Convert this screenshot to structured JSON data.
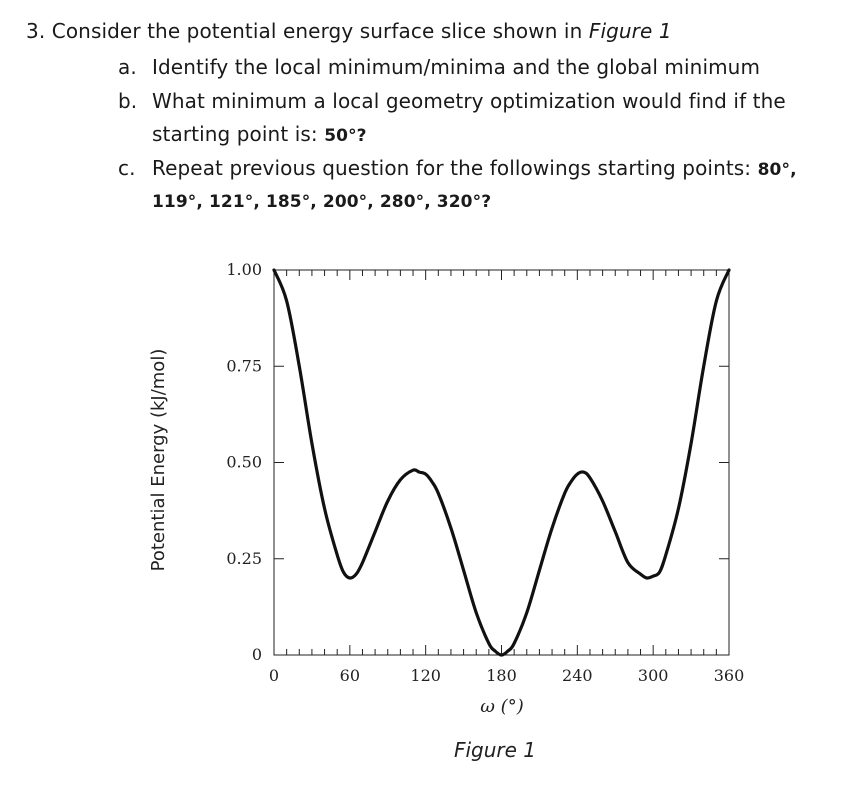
{
  "question": {
    "number": "3.",
    "text_prefix": "Consider the potential energy surface slice shown in",
    "figure_ref": "Figure 1",
    "a": {
      "marker": "a.",
      "text": "Identify the local minimum/minima and the global minimum"
    },
    "b": {
      "marker": "b.",
      "line1": "What minimum a local geometry optimization would find if the",
      "line2_prefix": "starting point is:",
      "line2_value": "50°?"
    },
    "c": {
      "marker": "c.",
      "line1_prefix": "Repeat previous question for the followings starting points:",
      "line1_value": "80°,",
      "line2_value": "119°, 121°, 185°, 200°, 280°, 320°?"
    }
  },
  "chart_data": {
    "type": "line",
    "title": "",
    "caption": "Figure 1",
    "xlabel": "ω (°)",
    "ylabel": "Potential Energy (kJ/mol)",
    "xlim": [
      0,
      360
    ],
    "ylim": [
      0,
      1.0
    ],
    "x_ticks": [
      "0",
      "60",
      "120",
      "180",
      "240",
      "300",
      "360"
    ],
    "y_ticks": [
      "0",
      "0.25",
      "0.50",
      "0.75",
      "1.00"
    ],
    "x_tick_values": [
      0,
      60,
      120,
      180,
      240,
      300,
      360
    ],
    "y_tick_values": [
      0,
      0.25,
      0.5,
      0.75,
      1.0
    ],
    "series": [
      {
        "x": [
          0,
          10,
          20,
          30,
          40,
          50,
          55,
          60,
          65,
          70,
          80,
          90,
          100,
          110,
          115,
          120,
          125,
          130,
          140,
          150,
          160,
          170,
          175,
          180,
          185,
          190,
          200,
          210,
          220,
          230,
          235,
          240,
          245,
          250,
          260,
          270,
          280,
          290,
          295,
          300,
          305,
          310,
          320,
          330,
          340,
          350,
          360
        ],
        "y": [
          1.0,
          0.92,
          0.75,
          0.55,
          0.38,
          0.26,
          0.215,
          0.2,
          0.21,
          0.24,
          0.32,
          0.4,
          0.455,
          0.48,
          0.475,
          0.47,
          0.45,
          0.42,
          0.33,
          0.22,
          0.11,
          0.03,
          0.01,
          0.0,
          0.01,
          0.03,
          0.11,
          0.22,
          0.33,
          0.42,
          0.45,
          0.47,
          0.475,
          0.46,
          0.4,
          0.32,
          0.24,
          0.21,
          0.2,
          0.205,
          0.215,
          0.26,
          0.38,
          0.55,
          0.75,
          0.92,
          1.0
        ]
      }
    ],
    "grid": false,
    "line_color": "#111111"
  }
}
